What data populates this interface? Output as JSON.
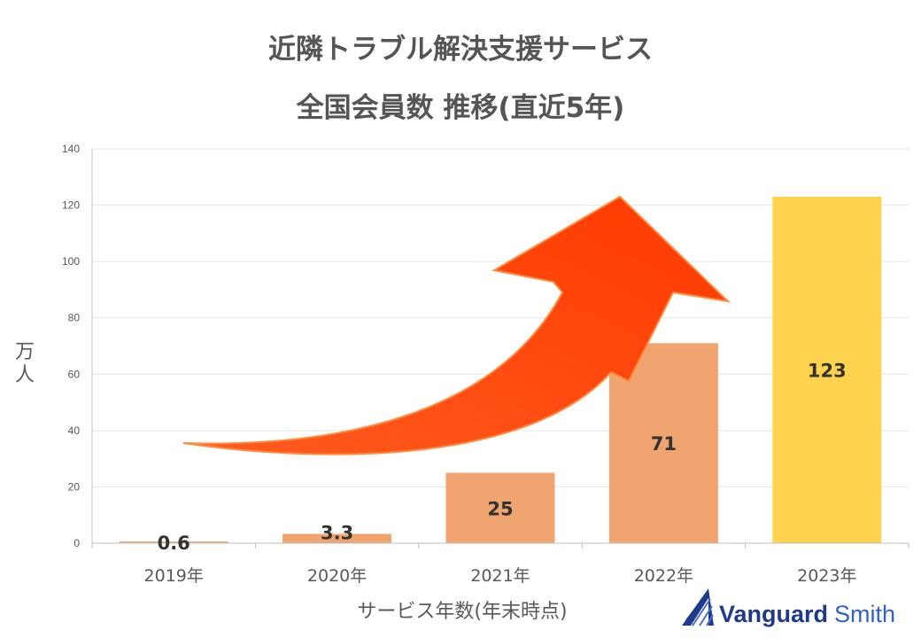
{
  "chart_data": {
    "type": "bar",
    "title_line1": "近隣トラブル解決支援サービス",
    "title_line2": "全国会員数 推移(直近5年)",
    "categories": [
      "2019年",
      "2020年",
      "2021年",
      "2022年",
      "2023年"
    ],
    "values": [
      0.6,
      3.3,
      25,
      71,
      123
    ],
    "data_labels": [
      "0.6",
      "3.3",
      "25",
      "71",
      "123"
    ],
    "bar_colors": [
      "#f0a46f",
      "#f0a46f",
      "#f0a46f",
      "#f0a46f",
      "#ffd34d"
    ],
    "ylabel": "万人",
    "xlabel": "サービス年数(年末時点)",
    "ylim": [
      0,
      140
    ],
    "yticks": [
      "0",
      "20",
      "40",
      "60",
      "80",
      "100",
      "120",
      "140"
    ],
    "grid": true,
    "annotation": "upward-curved-arrow",
    "arrow_color": "#ff3c00"
  },
  "brand": {
    "name_part1": "Vanguard",
    "name_part2": "Smith",
    "icon": "vanguard-smith-logo-icon"
  }
}
